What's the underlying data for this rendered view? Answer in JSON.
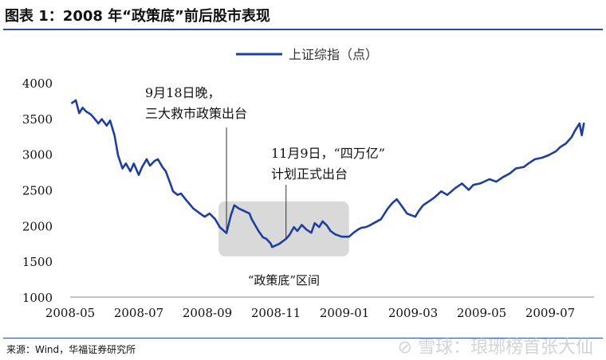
{
  "title": "图表 1：2008 年“政策底”前后股市表现",
  "source": "来源：Wind，华福证券研究所",
  "watermark": "雪球：琅琊榜首张大仙",
  "colors": {
    "line": "#1f3ea0",
    "rule": "#2b4fa0",
    "box": "#d9d9d9"
  },
  "chart_data": {
    "type": "line",
    "legend": "上证综指（点）",
    "legend_position": "top",
    "grid": false,
    "ylim": [
      1000,
      4000
    ],
    "yticks": [
      1000,
      1500,
      2000,
      2500,
      3000,
      3500,
      4000
    ],
    "xticks": [
      "2008-05",
      "2008-07",
      "2008-09",
      "2008-11",
      "2009-01",
      "2009-03",
      "2009-05",
      "2009-07"
    ],
    "annotations": [
      {
        "lines": [
          "9月18日晚，",
          "三大救市政策出台"
        ],
        "date": "2008-09-18"
      },
      {
        "lines": [
          "11月9日，“四万亿”",
          "计划正式出台"
        ],
        "date": "2008-11-10"
      }
    ],
    "region": {
      "label": "“政策底”区间",
      "start": "2008-09-11",
      "end": "2009-01-05",
      "low": 1570,
      "high": 2340
    },
    "series": [
      {
        "name": "上证综指（点）",
        "points": [
          [
            "2008-05-02",
            3710
          ],
          [
            "2008-05-06",
            3755
          ],
          [
            "2008-05-09",
            3575
          ],
          [
            "2008-05-12",
            3650
          ],
          [
            "2008-05-15",
            3600
          ],
          [
            "2008-05-19",
            3560
          ],
          [
            "2008-05-22",
            3510
          ],
          [
            "2008-05-26",
            3430
          ],
          [
            "2008-05-29",
            3490
          ],
          [
            "2008-06-03",
            3400
          ],
          [
            "2008-06-06",
            3470
          ],
          [
            "2008-06-10",
            3260
          ],
          [
            "2008-06-13",
            2985
          ],
          [
            "2008-06-17",
            2800
          ],
          [
            "2008-06-20",
            2870
          ],
          [
            "2008-06-24",
            2760
          ],
          [
            "2008-06-27",
            2870
          ],
          [
            "2008-07-01",
            2710
          ],
          [
            "2008-07-04",
            2820
          ],
          [
            "2008-07-08",
            2930
          ],
          [
            "2008-07-11",
            2840
          ],
          [
            "2008-07-15",
            2905
          ],
          [
            "2008-07-18",
            2930
          ],
          [
            "2008-07-22",
            2820
          ],
          [
            "2008-07-25",
            2760
          ],
          [
            "2008-07-29",
            2590
          ],
          [
            "2008-08-01",
            2480
          ],
          [
            "2008-08-05",
            2430
          ],
          [
            "2008-08-08",
            2450
          ],
          [
            "2008-08-12",
            2370
          ],
          [
            "2008-08-15",
            2315
          ],
          [
            "2008-08-19",
            2240
          ],
          [
            "2008-08-25",
            2170
          ],
          [
            "2008-08-29",
            2125
          ],
          [
            "2008-09-03",
            2170
          ],
          [
            "2008-09-08",
            2090
          ],
          [
            "2008-09-12",
            1980
          ],
          [
            "2008-09-18",
            1895
          ],
          [
            "2008-09-22",
            2150
          ],
          [
            "2008-09-25",
            2285
          ],
          [
            "2008-09-29",
            2240
          ],
          [
            "2008-10-08",
            2170
          ],
          [
            "2008-10-10",
            2090
          ],
          [
            "2008-10-14",
            1980
          ],
          [
            "2008-10-16",
            1925
          ],
          [
            "2008-10-20",
            1835
          ],
          [
            "2008-10-23",
            1815
          ],
          [
            "2008-10-27",
            1745
          ],
          [
            "2008-10-28",
            1700
          ],
          [
            "2008-11-04",
            1745
          ],
          [
            "2008-11-10",
            1815
          ],
          [
            "2008-11-13",
            1870
          ],
          [
            "2008-11-17",
            1980
          ],
          [
            "2008-11-20",
            1925
          ],
          [
            "2008-11-24",
            2010
          ],
          [
            "2008-11-28",
            1945
          ],
          [
            "2008-12-02",
            1900
          ],
          [
            "2008-12-05",
            2035
          ],
          [
            "2008-12-09",
            1980
          ],
          [
            "2008-12-12",
            2060
          ],
          [
            "2008-12-16",
            2000
          ],
          [
            "2008-12-19",
            1925
          ],
          [
            "2008-12-23",
            1880
          ],
          [
            "2008-12-29",
            1845
          ],
          [
            "2009-01-05",
            1845
          ],
          [
            "2009-01-09",
            1900
          ],
          [
            "2009-01-13",
            1945
          ],
          [
            "2009-01-16",
            1970
          ],
          [
            "2009-01-20",
            1980
          ],
          [
            "2009-01-23",
            2000
          ],
          [
            "2009-02-03",
            2090
          ],
          [
            "2009-02-09",
            2240
          ],
          [
            "2009-02-13",
            2315
          ],
          [
            "2009-02-17",
            2370
          ],
          [
            "2009-02-23",
            2240
          ],
          [
            "2009-02-26",
            2170
          ],
          [
            "2009-03-03",
            2125
          ],
          [
            "2009-03-06",
            2205
          ],
          [
            "2009-03-10",
            2285
          ],
          [
            "2009-03-16",
            2350
          ],
          [
            "2009-03-20",
            2395
          ],
          [
            "2009-03-26",
            2480
          ],
          [
            "2009-04-01",
            2430
          ],
          [
            "2009-04-08",
            2525
          ],
          [
            "2009-04-14",
            2590
          ],
          [
            "2009-04-20",
            2500
          ],
          [
            "2009-04-24",
            2570
          ],
          [
            "2009-04-30",
            2590
          ],
          [
            "2009-05-08",
            2650
          ],
          [
            "2009-05-14",
            2615
          ],
          [
            "2009-05-20",
            2680
          ],
          [
            "2009-05-26",
            2730
          ],
          [
            "2009-06-01",
            2800
          ],
          [
            "2009-06-08",
            2820
          ],
          [
            "2009-06-12",
            2870
          ],
          [
            "2009-06-18",
            2930
          ],
          [
            "2009-06-24",
            2950
          ],
          [
            "2009-06-30",
            2985
          ],
          [
            "2009-07-06",
            3040
          ],
          [
            "2009-07-10",
            3100
          ],
          [
            "2009-07-15",
            3150
          ],
          [
            "2009-07-20",
            3240
          ],
          [
            "2009-07-23",
            3330
          ],
          [
            "2009-07-27",
            3430
          ],
          [
            "2009-07-29",
            3265
          ],
          [
            "2009-07-31",
            3440
          ]
        ]
      }
    ]
  }
}
